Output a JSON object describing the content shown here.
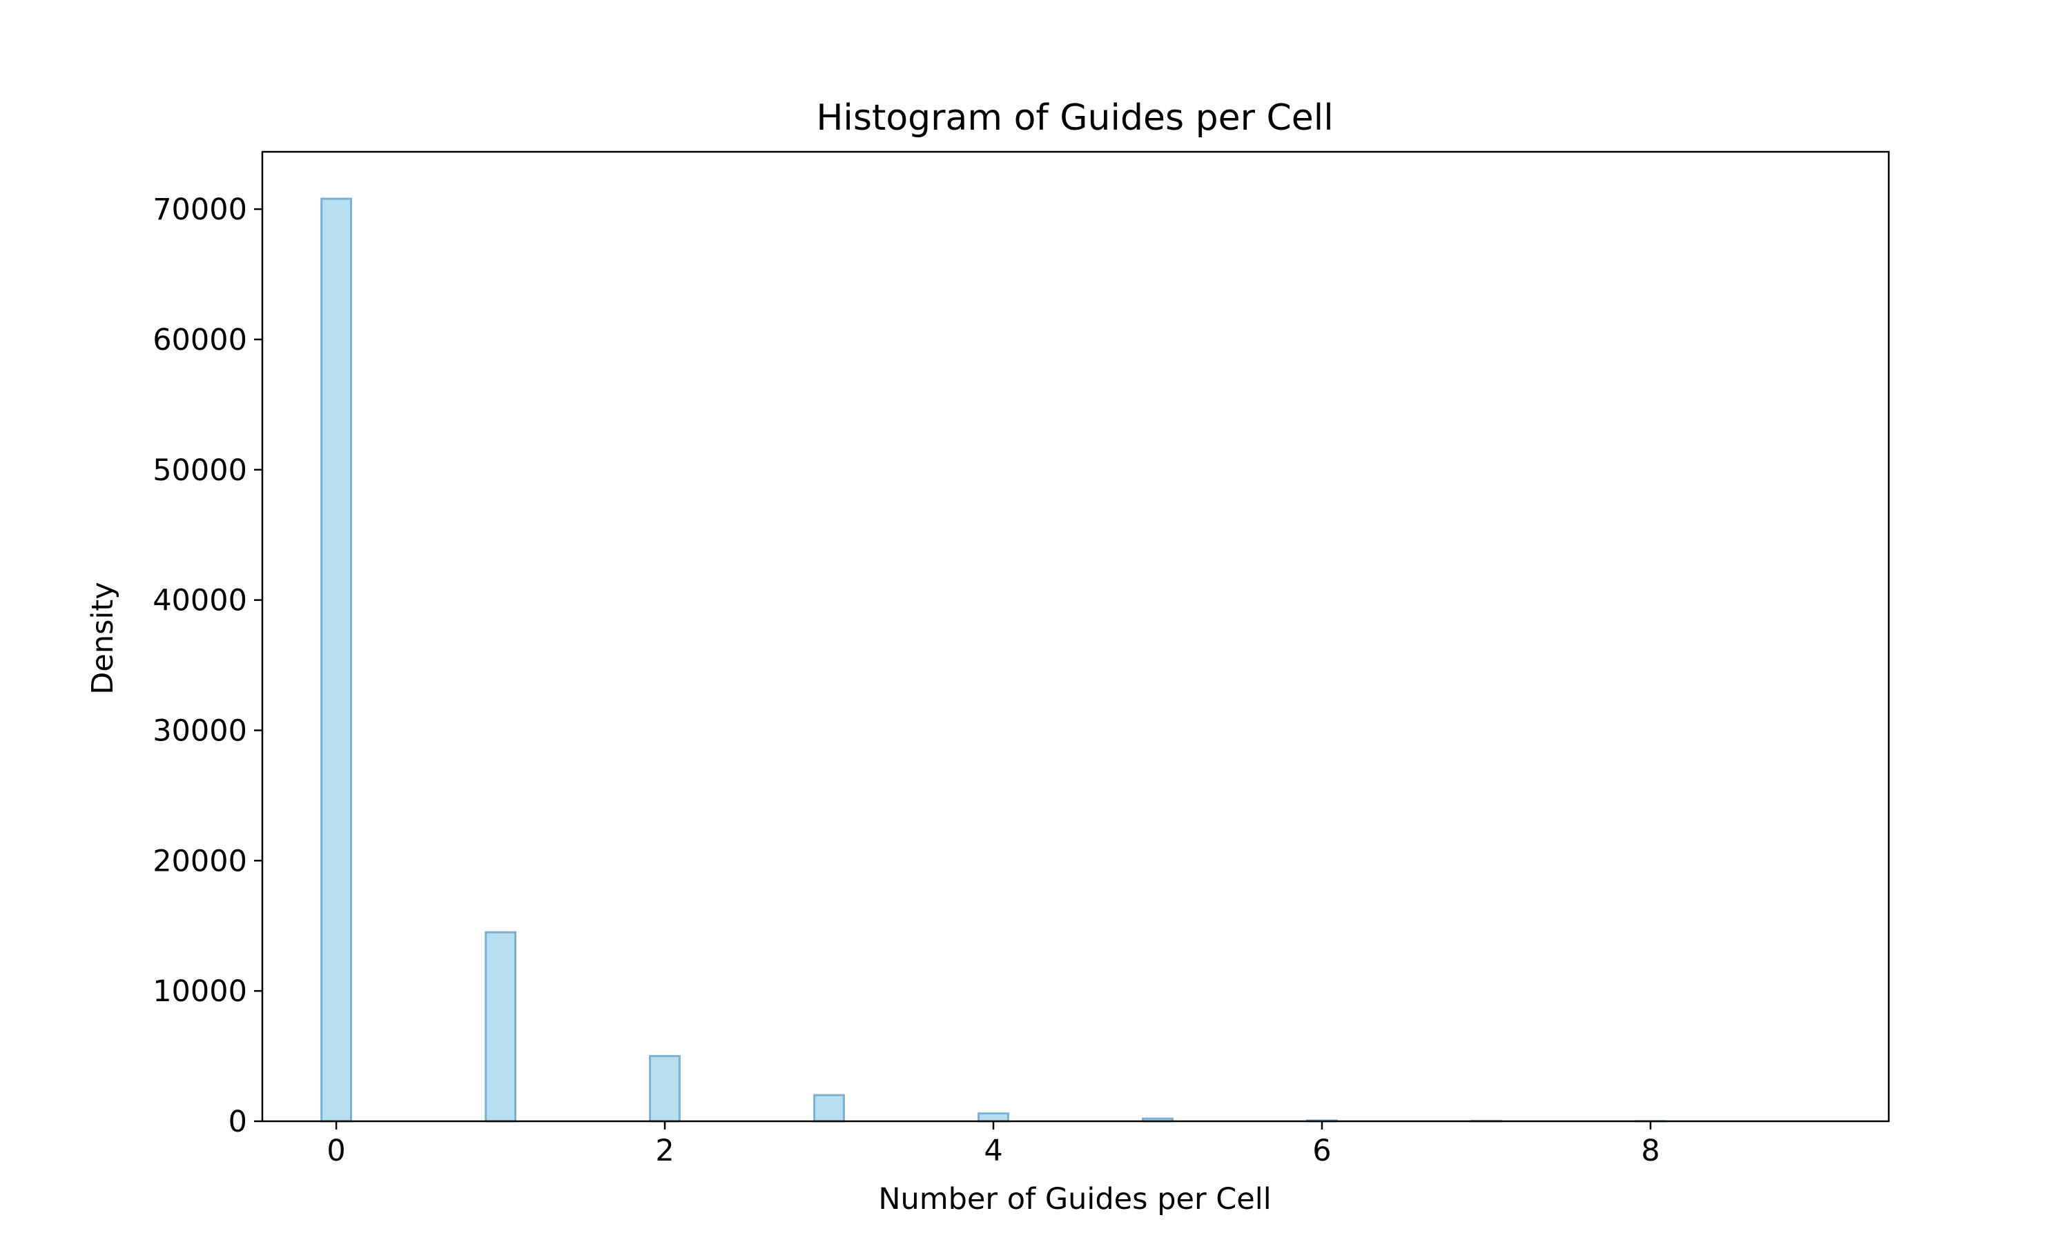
{
  "chart_data": {
    "type": "bar",
    "title": "Histogram of Guides per Cell",
    "xlabel": "Number of Guides per Cell",
    "ylabel": "Density",
    "xlim": [
      -0.45,
      9.45
    ],
    "ylim": [
      0,
      74400
    ],
    "xticks": [
      "0",
      "2",
      "4",
      "6",
      "8"
    ],
    "yticks": [
      "0",
      "10000",
      "20000",
      "30000",
      "40000",
      "50000",
      "60000",
      "70000"
    ],
    "grid": false,
    "bar_color": "#b8dff0",
    "bar_edge_color": "#7ab0d4",
    "bin_width": 0.18,
    "bins": [
      {
        "x": 0,
        "value": 70800
      },
      {
        "x": 1,
        "value": 14500
      },
      {
        "x": 2,
        "value": 5000
      },
      {
        "x": 3,
        "value": 2000
      },
      {
        "x": 4,
        "value": 600
      },
      {
        "x": 5,
        "value": 200
      },
      {
        "x": 6,
        "value": 60
      },
      {
        "x": 7,
        "value": 20
      },
      {
        "x": 8,
        "value": 5
      },
      {
        "x": 9,
        "value": 2
      }
    ]
  }
}
